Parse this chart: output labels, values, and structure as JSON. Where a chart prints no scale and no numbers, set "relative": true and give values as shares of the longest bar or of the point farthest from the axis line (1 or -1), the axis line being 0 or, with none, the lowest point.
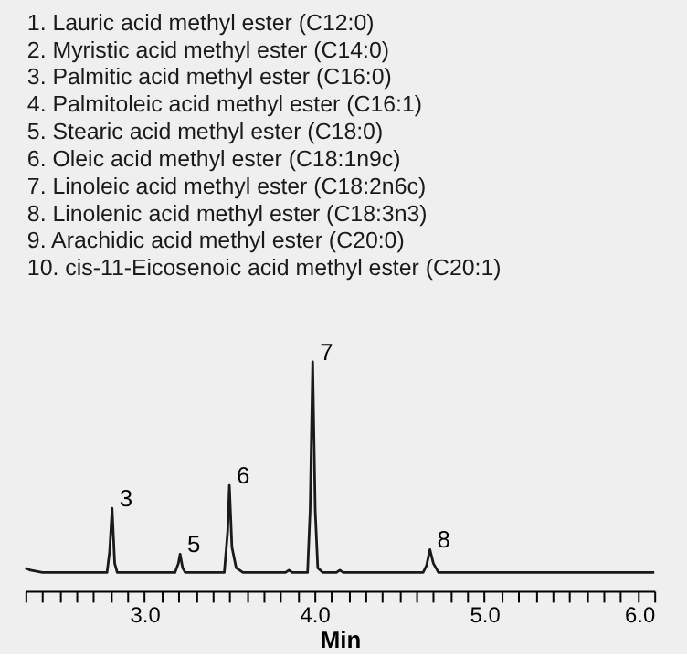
{
  "chart_data": {
    "type": "line",
    "relative": true,
    "xlabel": "Min",
    "color": "#1a1a1a",
    "x": [
      2.3,
      2.33,
      2.4,
      2.5,
      2.78,
      2.795,
      2.81,
      2.825,
      2.84,
      3.18,
      3.2,
      3.21,
      3.225,
      3.24,
      3.26,
      3.47,
      3.49,
      3.5,
      3.515,
      3.54,
      3.58,
      3.6,
      3.83,
      3.85,
      3.87,
      3.96,
      3.975,
      3.99,
      4.005,
      4.02,
      4.05,
      4.13,
      4.15,
      4.17,
      4.64,
      4.66,
      4.68,
      4.7,
      4.73,
      4.76,
      6.0
    ],
    "values": [
      0.1,
      0.09,
      0.08,
      0.08,
      0.08,
      0.17,
      0.36,
      0.12,
      0.08,
      0.08,
      0.12,
      0.16,
      0.1,
      0.08,
      0.08,
      0.08,
      0.26,
      0.46,
      0.19,
      0.1,
      0.08,
      0.08,
      0.08,
      0.09,
      0.08,
      0.08,
      0.35,
      1,
      0.35,
      0.1,
      0.08,
      0.08,
      0.09,
      0.08,
      0.08,
      0.11,
      0.18,
      0.12,
      0.08,
      0.08,
      0.08
    ],
    "xlim": [
      2.3,
      6.0
    ],
    "xticks": [
      {
        "value": 2.3,
        "label": null
      },
      {
        "value": 2.4,
        "label": null
      },
      {
        "value": 2.5,
        "label": null
      },
      {
        "value": 2.6,
        "label": null
      },
      {
        "value": 2.7,
        "label": null
      },
      {
        "value": 2.8,
        "label": null
      },
      {
        "value": 2.9,
        "label": null
      },
      {
        "value": 3.0,
        "label": "3.0"
      },
      {
        "value": 3.1,
        "label": null
      },
      {
        "value": 3.2,
        "label": null
      },
      {
        "value": 3.3,
        "label": null
      },
      {
        "value": 3.4,
        "label": null
      },
      {
        "value": 3.5,
        "label": null
      },
      {
        "value": 3.6,
        "label": null
      },
      {
        "value": 3.7,
        "label": null
      },
      {
        "value": 3.8,
        "label": null
      },
      {
        "value": 3.9,
        "label": null
      },
      {
        "value": 4.0,
        "label": "4.0"
      },
      {
        "value": 4.1,
        "label": null
      },
      {
        "value": 4.2,
        "label": null
      },
      {
        "value": 4.3,
        "label": null
      },
      {
        "value": 4.4,
        "label": null
      },
      {
        "value": 4.5,
        "label": null
      },
      {
        "value": 4.6,
        "label": null
      },
      {
        "value": 4.7,
        "label": null
      },
      {
        "value": 4.8,
        "label": null
      },
      {
        "value": 4.9,
        "label": null
      },
      {
        "value": 5.0,
        "label": "5.0"
      },
      {
        "value": 5.1,
        "label": null
      },
      {
        "value": 5.2,
        "label": null
      },
      {
        "value": 5.3,
        "label": null
      },
      {
        "value": 5.4,
        "label": null
      },
      {
        "value": 5.5,
        "label": null
      },
      {
        "value": 5.6,
        "label": null
      },
      {
        "value": 5.7,
        "label": null
      },
      {
        "value": 5.8,
        "label": null
      },
      {
        "value": 5.9,
        "label": null
      },
      {
        "value": 6.0,
        "label": "6.0"
      }
    ],
    "annotations": [
      "1. Lauric acid methyl ester (C12:0)",
      "2. Myristic acid methyl ester (C14:0)",
      "3. Palmitic acid methyl ester (C16:0)",
      "4. Palmitoleic acid methyl ester (C16:1)",
      "5. Stearic acid methyl ester (C18:0)",
      "6. Oleic acid methyl ester (C18:1n9c)",
      "7. Linoleic acid methyl ester (C18:2n6c)",
      "8. Linolenic acid methyl ester (C18:3n3)",
      "9. Arachidic acid methyl ester (C20:0)",
      "10. cis-11-Eicosenoic acid methyl ester (C20:1)",
      {
        "text": "3",
        "x": 2.81,
        "y": 0.36
      },
      {
        "text": "5",
        "x": 3.21,
        "y": 0.16
      },
      {
        "text": "6",
        "x": 3.5,
        "y": 0.46
      },
      {
        "text": "7",
        "x": 3.99,
        "y": 1
      },
      {
        "text": "8",
        "x": 4.68,
        "y": 0.18
      }
    ]
  }
}
